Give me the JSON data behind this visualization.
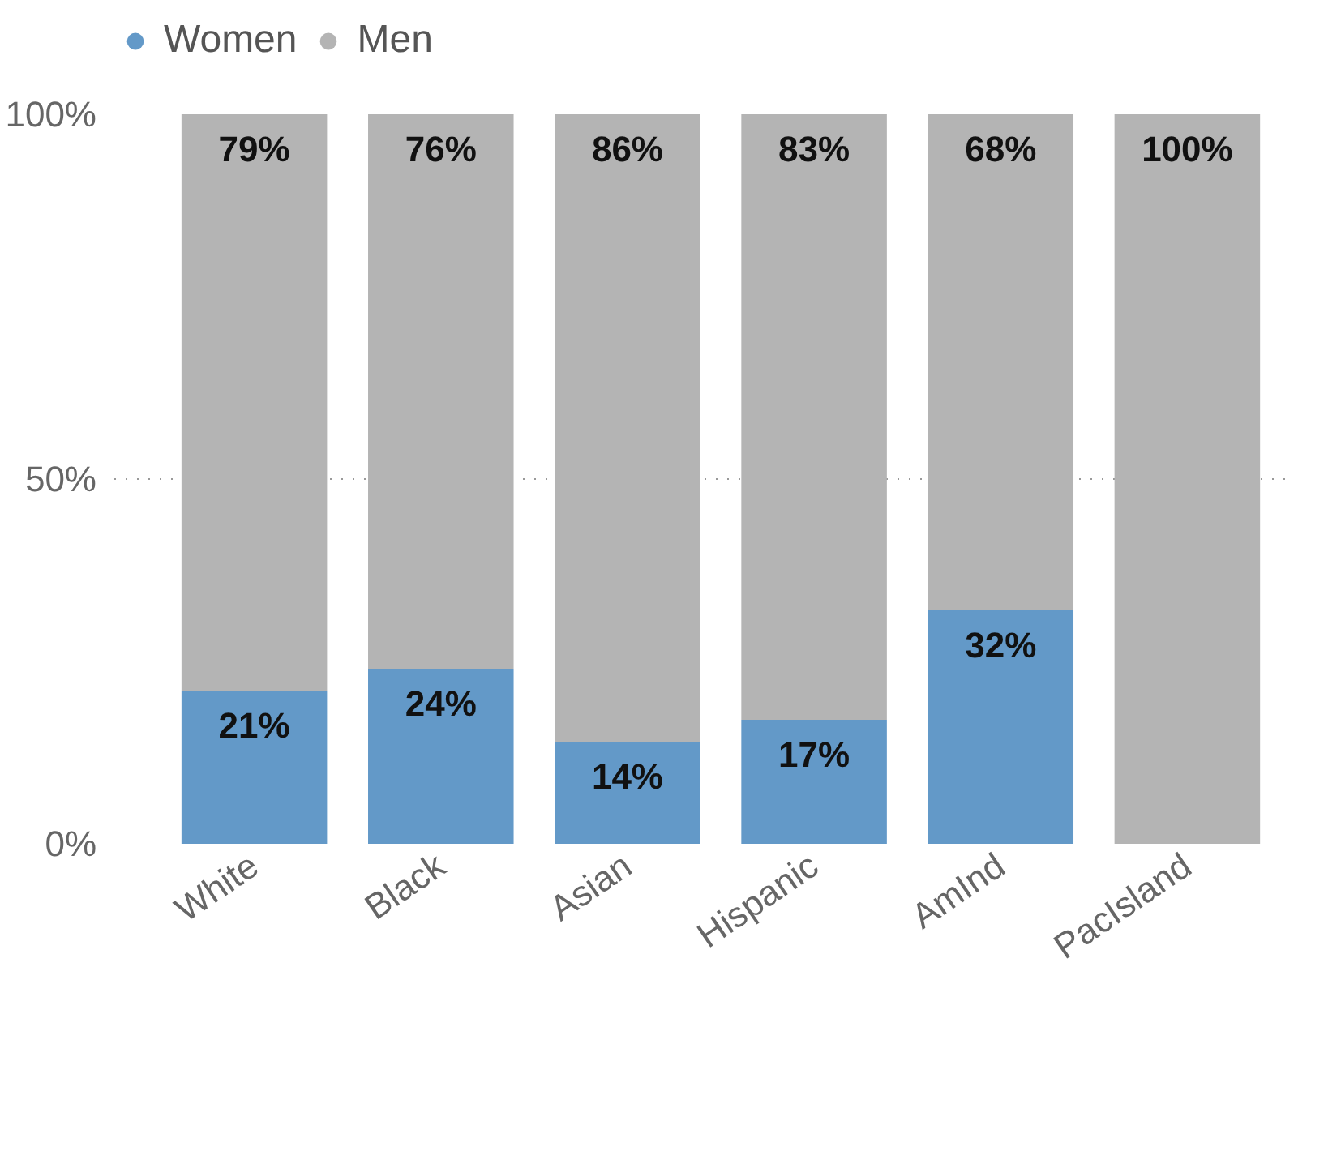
{
  "chart_data": {
    "type": "bar",
    "stacked": true,
    "categories": [
      "White",
      "Black",
      "Asian",
      "Hispanic",
      "AmInd",
      "PacIsland"
    ],
    "series": [
      {
        "name": "Women",
        "color": "#6399c8",
        "values": [
          21,
          24,
          14,
          17,
          32,
          0
        ],
        "value_labels": [
          "21%",
          "24%",
          "14%",
          "17%",
          "32%",
          null
        ]
      },
      {
        "name": "Men",
        "color": "#b4b4b4",
        "values": [
          79,
          76,
          86,
          83,
          68,
          100
        ],
        "value_labels": [
          "79%",
          "76%",
          "86%",
          "83%",
          "68%",
          "100%"
        ]
      }
    ],
    "ylim": [
      0,
      100
    ],
    "yticks": [
      {
        "value": 0,
        "label": "0%"
      },
      {
        "value": 50,
        "label": "50%"
      },
      {
        "value": 100,
        "label": "100%"
      }
    ],
    "grid": "y",
    "legend": "top left"
  }
}
